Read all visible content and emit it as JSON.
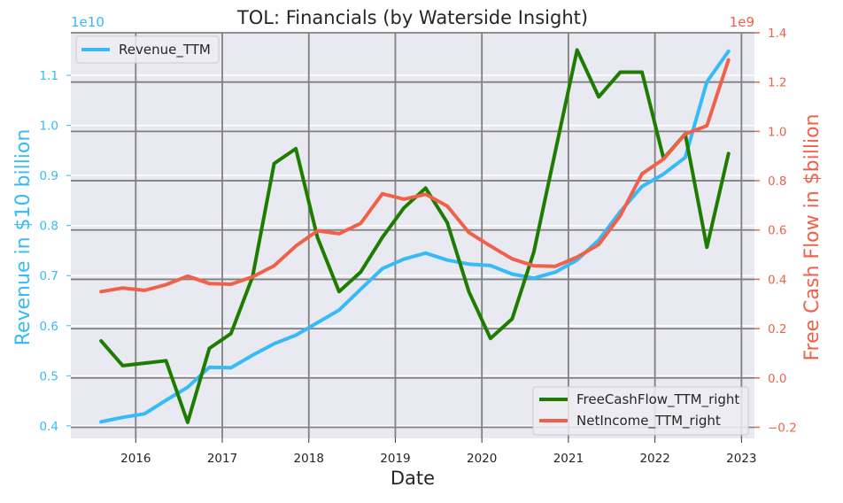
{
  "chart_data": {
    "type": "line",
    "title": "TOL: Financials (by Waterside Insight)",
    "xlabel": "Date",
    "ylabel_left": "Revenue in $10 billion",
    "ylabel_right": "Free Cash Flow in $billion",
    "left_offset_text": "1e10",
    "right_offset_text": "1e9",
    "xlim": [
      2015.25,
      2023.15
    ],
    "x_ticks": [
      {
        "value": 2016,
        "label": "2016"
      },
      {
        "value": 2017,
        "label": "2017"
      },
      {
        "value": 2018,
        "label": "2018"
      },
      {
        "value": 2019,
        "label": "2019"
      },
      {
        "value": 2020,
        "label": "2020"
      },
      {
        "value": 2021,
        "label": "2021"
      },
      {
        "value": 2022,
        "label": "2022"
      },
      {
        "value": 2023,
        "label": "2023"
      }
    ],
    "ylim_left": [
      0.375,
      1.185
    ],
    "ylim_right": [
      -0.245,
      1.4
    ],
    "y_ticks_left": [
      {
        "value": 0.4,
        "label": "0.4"
      },
      {
        "value": 0.5,
        "label": "0.5"
      },
      {
        "value": 0.6,
        "label": "0.6"
      },
      {
        "value": 0.7,
        "label": "0.7"
      },
      {
        "value": 0.8,
        "label": "0.8"
      },
      {
        "value": 0.9,
        "label": "0.9"
      },
      {
        "value": 1.0,
        "label": "1.0"
      },
      {
        "value": 1.1,
        "label": "1.1"
      }
    ],
    "y_ticks_right": [
      {
        "value": -0.2,
        "label": "−0.2"
      },
      {
        "value": 0.0,
        "label": "0.0"
      },
      {
        "value": 0.2,
        "label": "0.2"
      },
      {
        "value": 0.4,
        "label": "0.4"
      },
      {
        "value": 0.6,
        "label": "0.6"
      },
      {
        "value": 0.8,
        "label": "0.8"
      },
      {
        "value": 1.0,
        "label": "1.0"
      },
      {
        "value": 1.2,
        "label": "1.2"
      },
      {
        "value": 1.4,
        "label": "1.4"
      }
    ],
    "grid": true,
    "colors": {
      "revenue": "#36bbf7",
      "fcf": "#1e7d00",
      "netincome": "#f0614a",
      "left_axis": "#36bbf7",
      "right_axis": "#f0614a",
      "plot_bg": "#e8e9f1",
      "grid": "#808080"
    },
    "legend_left": {
      "position": "top-left",
      "entries": [
        "Revenue_TTM"
      ]
    },
    "legend_right": {
      "position": "bottom-right",
      "entries": [
        "FreeCashFlow_TTM_right",
        "NetIncome_TTM_right"
      ]
    },
    "series": [
      {
        "name": "Revenue_TTM",
        "axis": "left",
        "color": "#36bbf7",
        "x": [
          2015.6,
          2015.85,
          2016.1,
          2016.35,
          2016.6,
          2016.85,
          2017.1,
          2017.35,
          2017.6,
          2017.85,
          2018.1,
          2018.35,
          2018.6,
          2018.85,
          2019.1,
          2019.35,
          2019.6,
          2019.85,
          2020.1,
          2020.35,
          2020.6,
          2020.85,
          2021.1,
          2021.35,
          2021.6,
          2021.85,
          2022.1,
          2022.35,
          2022.6,
          2022.85
        ],
        "y": [
          0.408,
          0.417,
          0.424,
          0.451,
          0.477,
          0.517,
          0.516,
          0.541,
          0.564,
          0.581,
          0.606,
          0.631,
          0.673,
          0.714,
          0.733,
          0.745,
          0.731,
          0.723,
          0.72,
          0.703,
          0.695,
          0.707,
          0.731,
          0.771,
          0.828,
          0.878,
          0.903,
          0.936,
          1.087,
          1.148
        ]
      },
      {
        "name": "FreeCashFlow_TTM_right",
        "axis": "right",
        "color": "#1e7d00",
        "x": [
          2015.6,
          2015.85,
          2016.1,
          2016.35,
          2016.6,
          2016.85,
          2017.1,
          2017.35,
          2017.6,
          2017.85,
          2018.1,
          2018.35,
          2018.6,
          2018.85,
          2019.1,
          2019.35,
          2019.6,
          2019.85,
          2020.1,
          2020.35,
          2020.6,
          2020.85,
          2021.1,
          2021.35,
          2021.6,
          2021.85,
          2022.1,
          2022.35,
          2022.6,
          2022.85
        ],
        "y": [
          0.15,
          0.05,
          0.06,
          0.07,
          -0.18,
          0.12,
          0.18,
          0.41,
          0.87,
          0.93,
          0.57,
          0.35,
          0.43,
          0.57,
          0.69,
          0.77,
          0.63,
          0.35,
          0.16,
          0.24,
          0.51,
          0.92,
          1.33,
          1.14,
          1.24,
          1.24,
          0.89,
          0.99,
          0.53,
          0.91
        ]
      },
      {
        "name": "NetIncome_TTM_right",
        "axis": "right",
        "color": "#f0614a",
        "x": [
          2015.6,
          2015.85,
          2016.1,
          2016.35,
          2016.6,
          2016.85,
          2017.1,
          2017.35,
          2017.6,
          2017.85,
          2018.1,
          2018.35,
          2018.6,
          2018.85,
          2019.1,
          2019.35,
          2019.6,
          2019.85,
          2020.1,
          2020.35,
          2020.6,
          2020.85,
          2021.1,
          2021.35,
          2021.6,
          2021.85,
          2022.1,
          2022.35,
          2022.6,
          2022.85
        ],
        "y": [
          0.35,
          0.365,
          0.355,
          0.378,
          0.413,
          0.383,
          0.38,
          0.41,
          0.455,
          0.535,
          0.597,
          0.585,
          0.627,
          0.747,
          0.725,
          0.745,
          0.697,
          0.59,
          0.535,
          0.483,
          0.455,
          0.453,
          0.49,
          0.541,
          0.658,
          0.828,
          0.888,
          0.989,
          1.023,
          1.29
        ]
      }
    ]
  }
}
